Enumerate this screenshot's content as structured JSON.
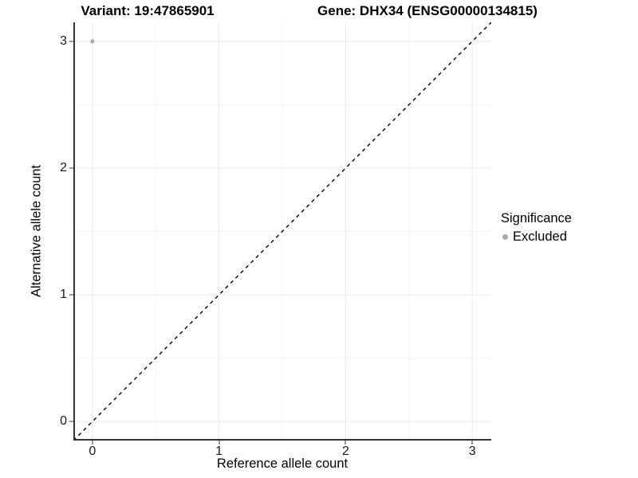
{
  "header": {
    "variant_title": "Variant: 19:47865901",
    "gene_title": "Gene: DHX34 (ENSG00000134815)"
  },
  "chart_data": {
    "type": "scatter",
    "xlabel": "Reference allele count",
    "ylabel": "Alternative allele count",
    "xlim": [
      -0.15,
      3.15
    ],
    "ylim": [
      -0.15,
      3.15
    ],
    "x_ticks": [
      0,
      1,
      2,
      3
    ],
    "y_ticks": [
      0,
      1,
      2,
      3
    ],
    "x_minor_ticks": [
      0.5,
      1.5,
      2.5
    ],
    "y_minor_ticks": [
      0.5,
      1.5,
      2.5
    ],
    "grid": "major+minor",
    "points": [
      {
        "x": 0,
        "y": 3,
        "series": "Excluded"
      }
    ],
    "reference_line": {
      "slope": 1,
      "intercept": 0,
      "style": "dashed"
    },
    "legend": {
      "title": "Significance",
      "position": "right",
      "items": [
        {
          "label": "Excluded",
          "color": "#a9a9a9"
        }
      ]
    }
  },
  "colors": {
    "axis_line": "#333333",
    "tick_mark": "#333333",
    "grid_major": "#e9e9e9",
    "grid_minor": "#f3f3f3",
    "reference_line": "#000000",
    "excluded_point": "#a9a9a9",
    "background": "#ffffff"
  }
}
